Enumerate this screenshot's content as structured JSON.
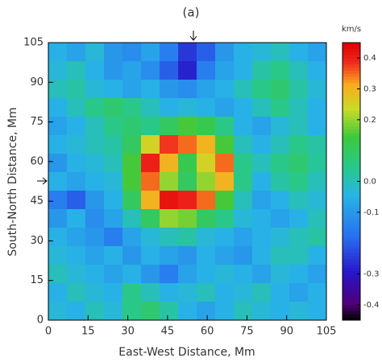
{
  "chart_data": {
    "type": "heatmap",
    "title": "(a)",
    "xlabel": "East-West Distance, Mm",
    "ylabel": "South-North Distance, Mm",
    "colorbar_label": "km/s",
    "xlim": [
      0,
      105
    ],
    "ylim": [
      0,
      105
    ],
    "xticks": [
      0,
      15,
      30,
      45,
      60,
      75,
      90,
      105
    ],
    "yticks": [
      0,
      15,
      30,
      45,
      60,
      75,
      90,
      105
    ],
    "clim": [
      -0.45,
      0.45
    ],
    "cticks": [
      0.4,
      0.3,
      0.2,
      {
        "value": 0,
        "label": "0.0"
      },
      -0.1,
      -0.3,
      -0.4
    ],
    "z": [
      [
        -0.05,
        -0.08,
        -0.03,
        -0.1,
        -0.12,
        -0.08,
        -0.15,
        -0.25,
        -0.2,
        -0.1,
        -0.05,
        -0.03,
        0.0,
        -0.05,
        -0.08
      ],
      [
        -0.03,
        0.0,
        -0.05,
        -0.1,
        -0.08,
        -0.12,
        -0.2,
        -0.28,
        -0.15,
        -0.08,
        -0.05,
        0.02,
        0.05,
        0.0,
        -0.05
      ],
      [
        0.0,
        0.02,
        -0.03,
        -0.05,
        -0.08,
        -0.05,
        -0.1,
        -0.12,
        -0.08,
        -0.05,
        0.0,
        0.05,
        0.08,
        0.02,
        -0.03
      ],
      [
        -0.05,
        0.0,
        0.05,
        0.08,
        0.05,
        0.0,
        -0.05,
        -0.03,
        -0.05,
        -0.08,
        -0.05,
        0.0,
        0.05,
        0.0,
        -0.05
      ],
      [
        -0.08,
        -0.05,
        0.0,
        0.05,
        0.08,
        0.05,
        0.1,
        0.15,
        0.12,
        0.05,
        -0.05,
        -0.08,
        -0.03,
        0.0,
        -0.05
      ],
      [
        -0.05,
        -0.03,
        0.0,
        0.02,
        0.1,
        0.25,
        0.38,
        0.35,
        0.3,
        0.15,
        0.0,
        -0.05,
        0.0,
        0.05,
        0.02
      ],
      [
        -0.1,
        -0.05,
        -0.03,
        0.0,
        0.15,
        0.4,
        0.3,
        0.12,
        0.25,
        0.35,
        0.05,
        0.0,
        0.05,
        0.08,
        0.03
      ],
      [
        -0.05,
        -0.08,
        -0.05,
        -0.03,
        0.15,
        0.35,
        0.2,
        0.1,
        0.2,
        0.3,
        0.05,
        -0.05,
        0.02,
        0.05,
        0.0
      ],
      [
        -0.15,
        -0.2,
        -0.1,
        -0.05,
        0.1,
        0.3,
        0.42,
        0.4,
        0.35,
        0.15,
        0.0,
        -0.08,
        -0.05,
        0.0,
        -0.03
      ],
      [
        -0.1,
        -0.05,
        -0.12,
        -0.08,
        0.0,
        0.1,
        0.2,
        0.18,
        0.1,
        0.05,
        -0.03,
        -0.05,
        -0.08,
        -0.05,
        0.0
      ],
      [
        -0.05,
        -0.08,
        -0.1,
        -0.15,
        -0.08,
        -0.03,
        0.0,
        0.02,
        -0.03,
        -0.05,
        -0.08,
        -0.05,
        -0.03,
        0.0,
        0.02
      ],
      [
        -0.03,
        -0.05,
        -0.08,
        -0.05,
        -0.1,
        -0.05,
        -0.08,
        -0.1,
        -0.05,
        -0.08,
        -0.1,
        -0.05,
        0.0,
        0.0,
        -0.05
      ],
      [
        0.0,
        -0.03,
        -0.05,
        -0.08,
        -0.05,
        -0.1,
        -0.15,
        -0.08,
        -0.05,
        -0.03,
        -0.05,
        -0.08,
        -0.03,
        -0.05,
        -0.08
      ],
      [
        -0.05,
        0.0,
        -0.03,
        -0.05,
        0.05,
        0.0,
        -0.05,
        -0.03,
        0.0,
        -0.05,
        -0.03,
        0.0,
        -0.05,
        -0.08,
        -0.05
      ],
      [
        -0.03,
        -0.05,
        0.0,
        -0.03,
        0.05,
        0.08,
        0.02,
        -0.05,
        -0.08,
        -0.05,
        0.0,
        -0.03,
        -0.05,
        -0.03,
        -0.05
      ]
    ]
  }
}
